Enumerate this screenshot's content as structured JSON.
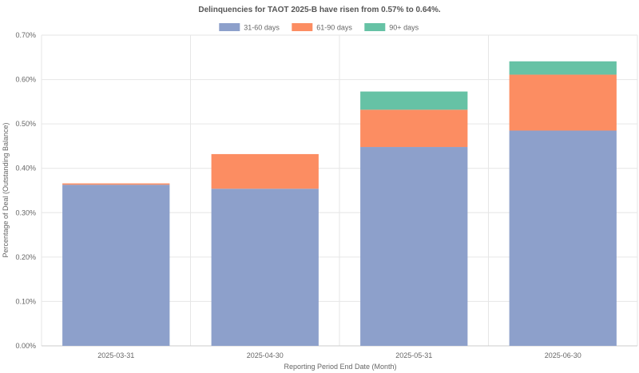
{
  "chart_data": {
    "type": "bar",
    "stacked": true,
    "title": "Delinquencies for TAOT 2025-B have risen from 0.57% to 0.64%.",
    "xlabel": "Reporting Period End Date (Month)",
    "ylabel": "Percentage of Deal (Outstanding Balance)",
    "categories": [
      "2025-03-31",
      "2025-04-30",
      "2025-05-31",
      "2025-06-30"
    ],
    "series": [
      {
        "name": "31-60 days",
        "color": "#8da0cb",
        "values": [
          0.363,
          0.354,
          0.448,
          0.485
        ]
      },
      {
        "name": "61-90 days",
        "color": "#fc8d62",
        "values": [
          0.003,
          0.078,
          0.084,
          0.126
        ]
      },
      {
        "name": "90+ days",
        "color": "#66c2a5",
        "values": [
          0.0,
          0.0,
          0.041,
          0.03
        ]
      }
    ],
    "ylim": [
      0,
      0.7
    ],
    "yticks": [
      "0.00%",
      "0.10%",
      "0.20%",
      "0.30%",
      "0.40%",
      "0.50%",
      "0.60%",
      "0.70%"
    ],
    "grid": true,
    "legend_position": "top-center"
  }
}
